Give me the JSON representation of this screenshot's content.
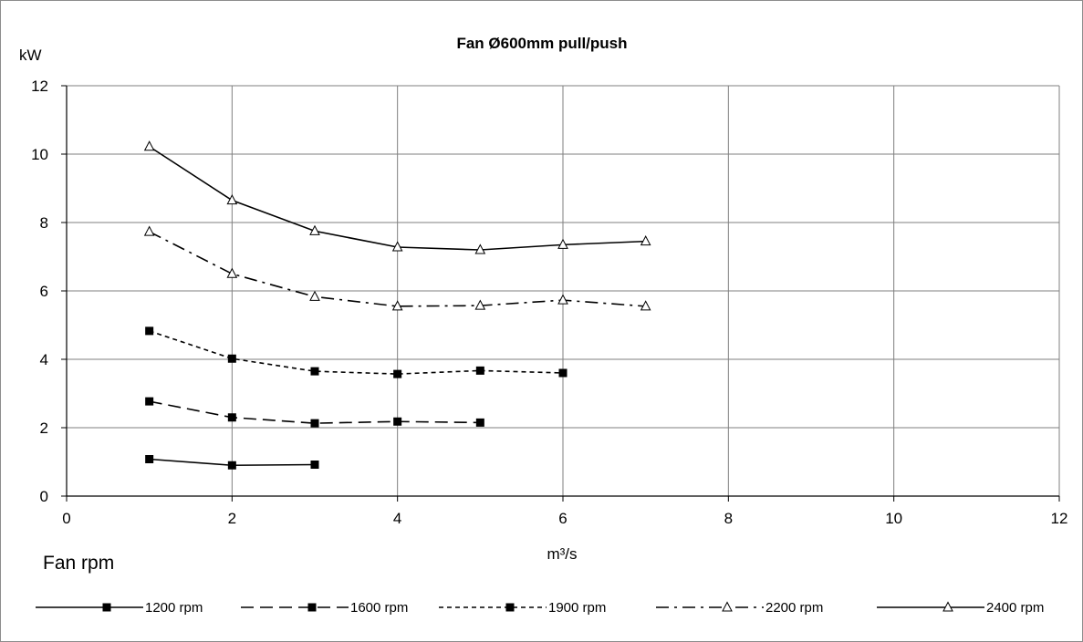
{
  "chart_data": {
    "type": "line",
    "title": "Fan Ø600mm pull/push",
    "ylabel": "kW",
    "xlabel": "m³/s",
    "side_label": "Fan rpm",
    "xlim": [
      0,
      12
    ],
    "ylim": [
      0,
      12
    ],
    "xticks": [
      "0",
      "2",
      "4",
      "6",
      "8",
      "10",
      "12"
    ],
    "yticks": [
      "0",
      "2",
      "4",
      "6",
      "8",
      "10",
      "12"
    ],
    "grid": true,
    "legend_position": "bottom",
    "series": [
      {
        "name": "1200 rpm",
        "style": "solid",
        "marker": "square",
        "x": [
          1,
          2,
          3
        ],
        "y": [
          1.08,
          0.9,
          0.92
        ]
      },
      {
        "name": "1600 rpm",
        "style": "long-dash",
        "marker": "square",
        "x": [
          1,
          2,
          3,
          4,
          5
        ],
        "y": [
          2.77,
          2.3,
          2.13,
          2.18,
          2.15
        ]
      },
      {
        "name": "1900 rpm",
        "style": "short-dash",
        "marker": "square",
        "x": [
          1,
          2,
          3,
          4,
          5,
          6
        ],
        "y": [
          4.83,
          4.02,
          3.65,
          3.57,
          3.67,
          3.6
        ]
      },
      {
        "name": "2200 rpm",
        "style": "dash-dot",
        "marker": "triangle",
        "x": [
          1,
          2,
          3,
          4,
          5,
          6,
          7
        ],
        "y": [
          7.73,
          6.5,
          5.83,
          5.55,
          5.57,
          5.73,
          5.55
        ]
      },
      {
        "name": "2400 rpm",
        "style": "solid",
        "marker": "triangle",
        "x": [
          1,
          2,
          3,
          4,
          5,
          6,
          7
        ],
        "y": [
          10.22,
          8.65,
          7.75,
          7.28,
          7.2,
          7.35,
          7.45
        ]
      }
    ]
  }
}
